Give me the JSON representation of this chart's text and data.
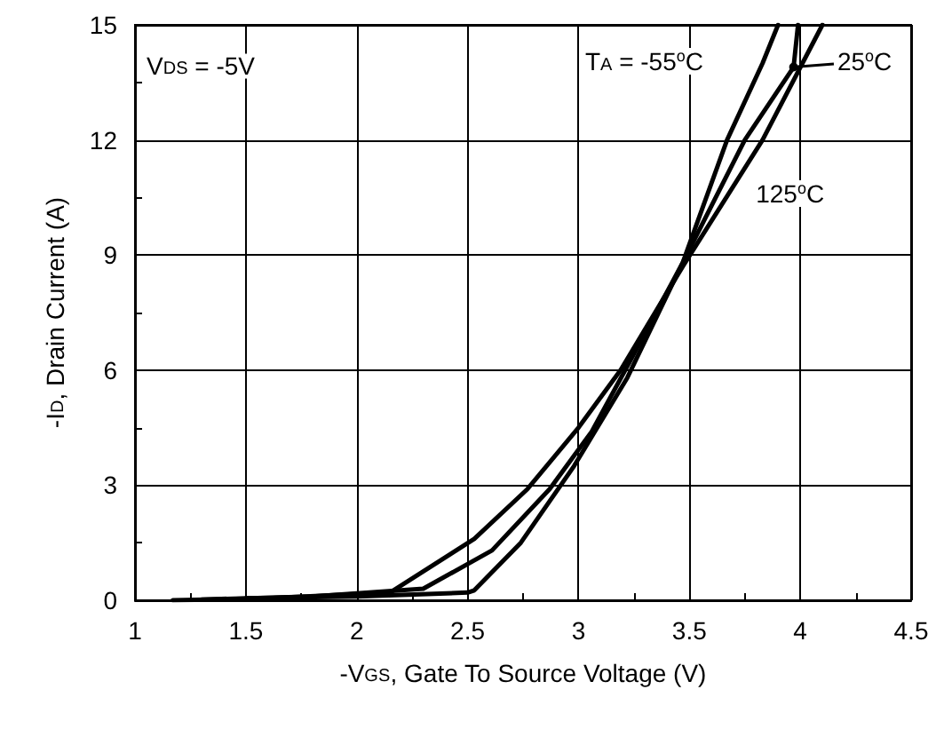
{
  "chart_data": {
    "type": "line",
    "xlabel": "-V$_{GS}$, Gate To Source Voltage (V)",
    "ylabel": "-I$_{D}$, Drain Current (A)",
    "annotations": [
      "V$_{DS}$ = -5V",
      "T$_{A}$ = -55$^{o}$C",
      "25$^{o}$C",
      "125$^{o}$C"
    ],
    "xlim": [
      1,
      4.5
    ],
    "xticks": [
      1,
      1.5,
      2,
      2.5,
      3,
      3.5,
      4,
      4.5
    ],
    "ylim": [
      0,
      15
    ],
    "yticks": [
      0,
      3,
      6,
      9,
      12,
      15
    ],
    "grid": true,
    "marker": "none",
    "line_style": "solid",
    "series": [
      {
        "color": "#000000",
        "x": [
          1.5,
          2.0,
          2.5,
          2.53,
          2.74,
          2.98,
          3.22,
          3.47,
          3.67,
          3.83,
          3.9
        ],
        "values": [
          0.05,
          0.1,
          0.2,
          0.26,
          1.5,
          3.5,
          5.8,
          8.8,
          12,
          14,
          15
        ]
      },
      {
        "color": "#000000",
        "x": [
          1.3,
          1.8,
          2.3,
          2.61,
          2.87,
          3.06,
          3.22,
          3.47,
          3.75,
          3.97,
          3.99
        ],
        "values": [
          0.02,
          0.1,
          0.3,
          1.3,
          2.9,
          4.4,
          6.1,
          8.8,
          12,
          13.9,
          15
        ]
      },
      {
        "color": "#000000",
        "x": [
          1.17,
          1.6,
          2.15,
          2.53,
          2.77,
          3.0,
          3.19,
          3.47,
          3.83,
          4.1
        ],
        "values": [
          0,
          0.05,
          0.2,
          1.6,
          2.9,
          4.5,
          6.0,
          8.7,
          12,
          15
        ]
      }
    ]
  }
}
